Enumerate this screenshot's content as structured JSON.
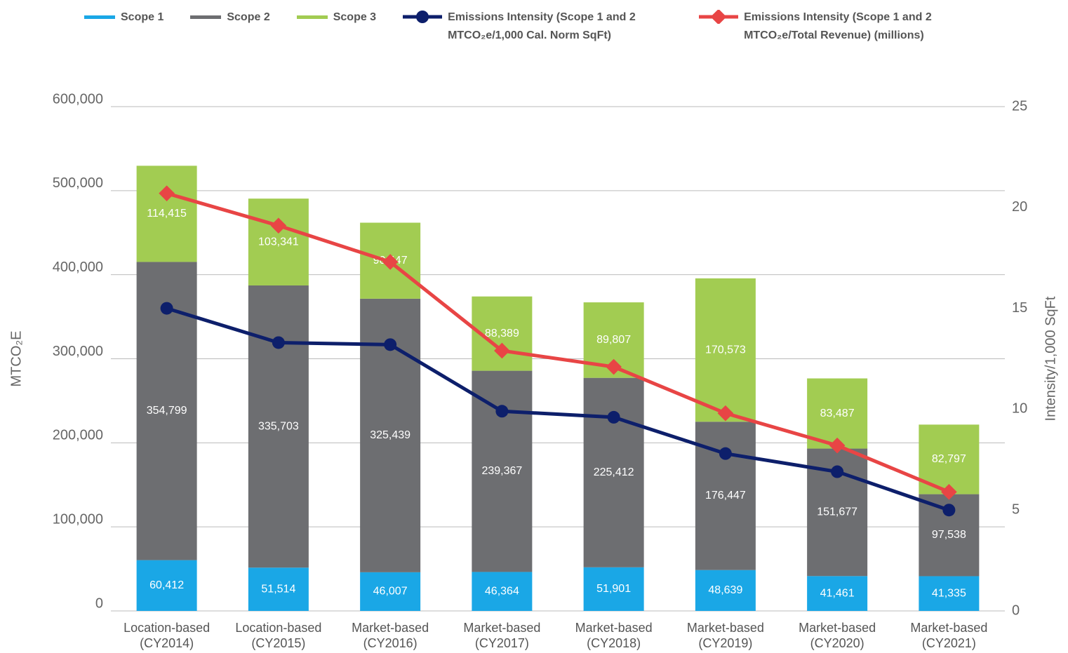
{
  "chart_data": {
    "type": "bar",
    "stacked": true,
    "categories": [
      "Location-based (CY2014)",
      "Location-based (CY2015)",
      "Market-based (CY2016)",
      "Market-based (CY2017)",
      "Market-based (CY2018)",
      "Market-based (CY2019)",
      "Market-based (CY2020)",
      "Market-based (CY2021)"
    ],
    "y_label": "MTCO₂E",
    "y2_label": "Intensity/1,000 SqFt",
    "ylim": [
      0,
      600000
    ],
    "yticks": [
      0,
      {
        "value": 100000,
        "label": "100,000"
      },
      {
        "value": 200000,
        "label": "200,000"
      },
      {
        "value": 300000,
        "label": "300,000"
      },
      {
        "value": 400000,
        "label": "400,000"
      },
      {
        "value": 500000,
        "label": "500,000"
      },
      {
        "value": 600000,
        "label": "600,000"
      }
    ],
    "y2lim": [
      0,
      25
    ],
    "y2ticks": [
      0,
      5,
      10,
      15,
      20,
      25
    ],
    "grid": true,
    "legend": "top",
    "series": [
      {
        "name": "Scope 1",
        "color": "#1aa7e6",
        "values": [
          60412,
          51514,
          46007,
          46364,
          51901,
          48639,
          41461,
          41335
        ],
        "value_labels": [
          "60,412",
          "51,514",
          "46,007",
          "46,364",
          "51,901",
          "48,639",
          "41,461",
          "41,335"
        ]
      },
      {
        "name": "Scope 2",
        "color": "#6d6e71",
        "values": [
          354799,
          335703,
          325439,
          239367,
          225412,
          176447,
          151677,
          97538
        ],
        "value_labels": [
          "354,799",
          "335,703",
          "325,439",
          "239,367",
          "225,412",
          "176,447",
          "151,677",
          "97,538"
        ]
      },
      {
        "name": "Scope 3",
        "color": "#a2cc52",
        "values": [
          114415,
          103341,
          90447,
          88389,
          89807,
          170573,
          83487,
          82797
        ],
        "value_labels": [
          "114,415",
          "103,341",
          "90,447",
          "88,389",
          "89,807",
          "170,573",
          "83,487",
          "82,797"
        ]
      },
      {
        "name": "Emissions Intensity (Scope 1 and 2 MTCO₂e/1,000 Cal. Norm SqFt)",
        "type": "line",
        "marker": "circle",
        "axis": "y2",
        "color": "#0d1f6b",
        "values": [
          15.0,
          13.3,
          13.2,
          9.9,
          9.6,
          7.8,
          6.9,
          5.0
        ]
      },
      {
        "name": "Emissions Intensity (Scope 1 and 2 MTCO₂e/Total Revenue) (millions)",
        "type": "line",
        "marker": "diamond",
        "axis": "y2",
        "color": "#e84545",
        "values": [
          20.7,
          19.1,
          17.3,
          12.9,
          12.1,
          9.8,
          8.2,
          5.9
        ]
      }
    ]
  }
}
